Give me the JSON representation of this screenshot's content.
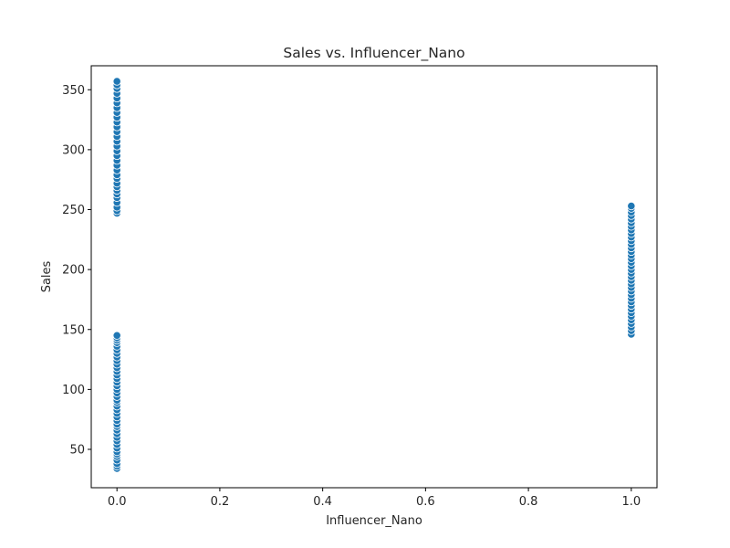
{
  "chart_data": {
    "type": "scatter",
    "title": "Sales vs. Influencer_Nano",
    "xlabel": "Influencer_Nano",
    "ylabel": "Sales",
    "xlim": [
      -0.05,
      1.05
    ],
    "ylim": [
      18,
      370
    ],
    "xticks": [
      0.0,
      0.2,
      0.4,
      0.6,
      0.8,
      1.0
    ],
    "xtick_labels": [
      "0.0",
      "0.2",
      "0.4",
      "0.6",
      "0.8",
      "1.0"
    ],
    "yticks": [
      50,
      100,
      150,
      200,
      250,
      300,
      350
    ],
    "ytick_labels": [
      "50",
      "100",
      "150",
      "200",
      "250",
      "300",
      "350"
    ],
    "grid": false,
    "legend": "none",
    "marker_color": "#1f77b4",
    "points": [
      [
        0,
        34
      ],
      [
        0,
        36
      ],
      [
        0,
        38
      ],
      [
        0,
        41
      ],
      [
        0,
        44
      ],
      [
        0,
        46
      ],
      [
        0,
        48
      ],
      [
        0,
        51
      ],
      [
        0,
        54
      ],
      [
        0,
        57
      ],
      [
        0,
        60
      ],
      [
        0,
        63
      ],
      [
        0,
        66
      ],
      [
        0,
        69
      ],
      [
        0,
        71
      ],
      [
        0,
        74
      ],
      [
        0,
        77
      ],
      [
        0,
        80
      ],
      [
        0,
        83
      ],
      [
        0,
        86
      ],
      [
        0,
        89
      ],
      [
        0,
        91
      ],
      [
        0,
        94
      ],
      [
        0,
        97
      ],
      [
        0,
        100
      ],
      [
        0,
        103
      ],
      [
        0,
        106
      ],
      [
        0,
        109
      ],
      [
        0,
        112
      ],
      [
        0,
        115
      ],
      [
        0,
        118
      ],
      [
        0,
        121
      ],
      [
        0,
        124
      ],
      [
        0,
        127
      ],
      [
        0,
        130
      ],
      [
        0,
        133
      ],
      [
        0,
        136
      ],
      [
        0,
        139
      ],
      [
        0,
        141
      ],
      [
        0,
        143
      ],
      [
        0,
        145
      ],
      [
        0,
        247
      ],
      [
        0,
        249
      ],
      [
        0,
        252
      ],
      [
        0,
        256
      ],
      [
        0,
        260
      ],
      [
        0,
        263
      ],
      [
        0,
        266
      ],
      [
        0,
        269
      ],
      [
        0,
        272
      ],
      [
        0,
        276
      ],
      [
        0,
        279
      ],
      [
        0,
        283
      ],
      [
        0,
        287
      ],
      [
        0,
        291
      ],
      [
        0,
        295
      ],
      [
        0,
        299
      ],
      [
        0,
        303
      ],
      [
        0,
        307
      ],
      [
        0,
        311
      ],
      [
        0,
        315
      ],
      [
        0,
        319
      ],
      [
        0,
        323
      ],
      [
        0,
        327
      ],
      [
        0,
        331
      ],
      [
        0,
        335
      ],
      [
        0,
        339
      ],
      [
        0,
        343
      ],
      [
        0,
        347
      ],
      [
        0,
        351
      ],
      [
        0,
        354
      ],
      [
        0,
        357
      ],
      [
        1,
        146
      ],
      [
        1,
        149
      ],
      [
        1,
        152
      ],
      [
        1,
        155
      ],
      [
        1,
        158
      ],
      [
        1,
        161
      ],
      [
        1,
        164
      ],
      [
        1,
        167
      ],
      [
        1,
        170
      ],
      [
        1,
        173
      ],
      [
        1,
        176
      ],
      [
        1,
        179
      ],
      [
        1,
        182
      ],
      [
        1,
        185
      ],
      [
        1,
        188
      ],
      [
        1,
        191
      ],
      [
        1,
        194
      ],
      [
        1,
        197
      ],
      [
        1,
        200
      ],
      [
        1,
        203
      ],
      [
        1,
        206
      ],
      [
        1,
        209
      ],
      [
        1,
        212
      ],
      [
        1,
        215
      ],
      [
        1,
        218
      ],
      [
        1,
        221
      ],
      [
        1,
        224
      ],
      [
        1,
        227
      ],
      [
        1,
        230
      ],
      [
        1,
        233
      ],
      [
        1,
        236
      ],
      [
        1,
        239
      ],
      [
        1,
        242
      ],
      [
        1,
        245
      ],
      [
        1,
        248
      ],
      [
        1,
        251
      ],
      [
        1,
        253
      ]
    ]
  }
}
